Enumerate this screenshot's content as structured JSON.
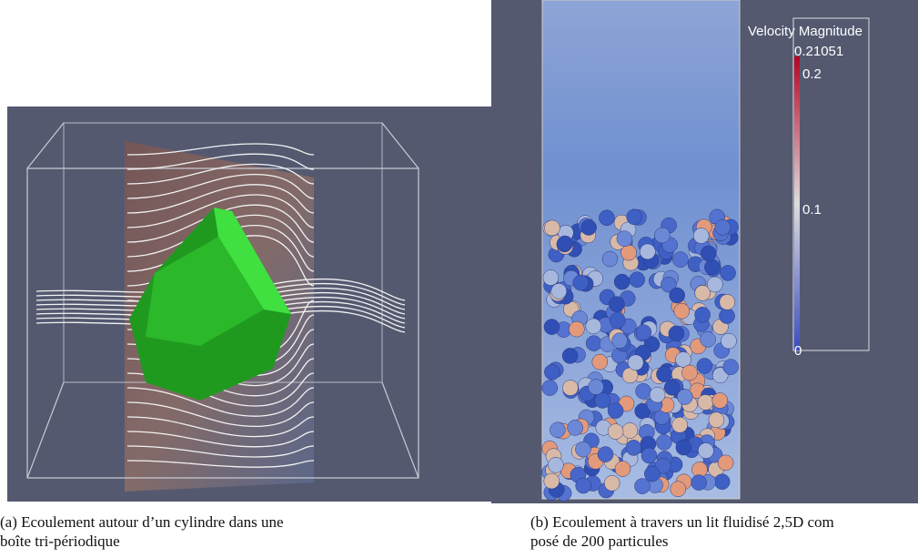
{
  "figure": {
    "left": {
      "caption_lines": [
        "(a) Ecoulement autour d’un cylindre dans une",
        "boîte tri-périodique"
      ]
    },
    "right": {
      "caption_lines": [
        "(b) Ecoulement à travers un lit fluidisé 2,5D com",
        "posé de 200 particules"
      ],
      "colorbar": {
        "title": "Velocity Magnitude",
        "max_label": "0.21051",
        "labels": [
          "0.2",
          "0.1",
          "0"
        ]
      }
    }
  }
}
